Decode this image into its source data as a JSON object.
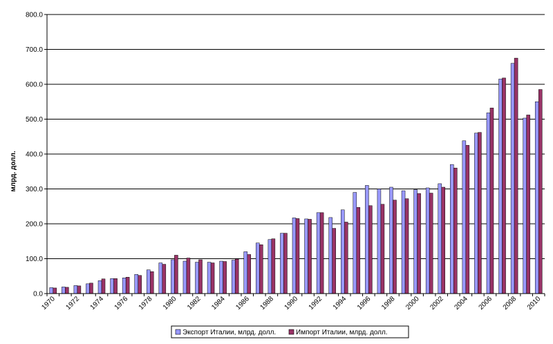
{
  "chart_data": {
    "type": "bar",
    "ylabel": "млрд. долл.",
    "xlabel": "",
    "ylim": [
      0,
      800
    ],
    "yticks": [
      "0.0",
      "100.0",
      "200.0",
      "300.0",
      "400.0",
      "500.0",
      "600.0",
      "700.0",
      "800.0"
    ],
    "grid": true,
    "legend_position": "bottom",
    "categories": [
      "1970",
      "1971",
      "1972",
      "1973",
      "1974",
      "1975",
      "1976",
      "1977",
      "1978",
      "1979",
      "1980",
      "1981",
      "1982",
      "1983",
      "1984",
      "1985",
      "1986",
      "1987",
      "1988",
      "1989",
      "1990",
      "1991",
      "1992",
      "1993",
      "1994",
      "1995",
      "1996",
      "1997",
      "1998",
      "1999",
      "2000",
      "2001",
      "2002",
      "2003",
      "2004",
      "2005",
      "2006",
      "2007",
      "2008",
      "2009",
      "2010"
    ],
    "xtick_labels": [
      "1970",
      "1972",
      "1974",
      "1976",
      "1978",
      "1980",
      "1982",
      "1984",
      "1986",
      "1988",
      "1990",
      "1992",
      "1994",
      "1996",
      "1998",
      "2000",
      "2002",
      "2004",
      "2006",
      "2008",
      "2010"
    ],
    "series": [
      {
        "name": "Экспорт Италии, млрд. долл.",
        "color": "#9999ff",
        "values": [
          17,
          19,
          23,
          28,
          37,
          43,
          45,
          55,
          68,
          88,
          97,
          93,
          90,
          90,
          93,
          96,
          120,
          145,
          155,
          173,
          217,
          214,
          232,
          218,
          240,
          290,
          310,
          300,
          305,
          295,
          298,
          303,
          315,
          370,
          438,
          460,
          518,
          615,
          660,
          503,
          550
        ]
      },
      {
        "name": "Импорт Италии, млрд. долл.",
        "color": "#993366",
        "values": [
          16,
          18,
          22,
          30,
          42,
          43,
          47,
          52,
          63,
          84,
          110,
          102,
          97,
          88,
          92,
          99,
          112,
          140,
          157,
          173,
          215,
          213,
          232,
          187,
          205,
          247,
          252,
          256,
          268,
          272,
          287,
          288,
          305,
          360,
          425,
          462,
          532,
          618,
          675,
          512,
          585
        ]
      }
    ]
  }
}
